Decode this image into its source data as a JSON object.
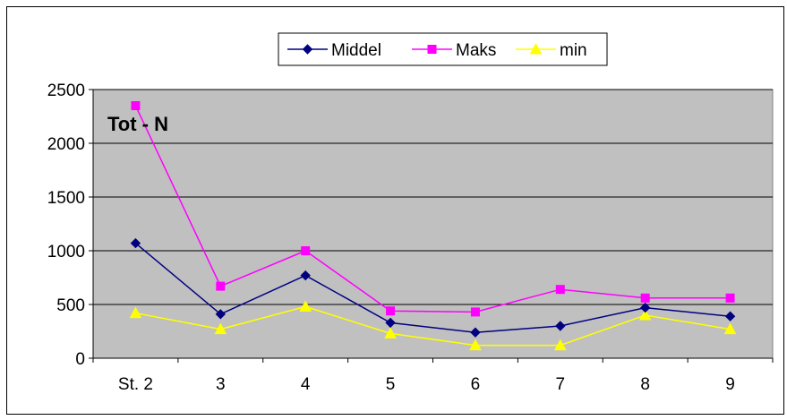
{
  "chart_data": {
    "type": "line",
    "title": "Tot - N",
    "categories": [
      "St. 2",
      "3",
      "4",
      "5",
      "6",
      "7",
      "8",
      "9"
    ],
    "ylim": [
      0,
      2500
    ],
    "yticks": [
      0,
      500,
      1000,
      1500,
      2000,
      2500
    ],
    "grid": true,
    "legend_position": "top",
    "plot_background": "#c0c0c0",
    "series": [
      {
        "name": "Middel",
        "color": "#000080",
        "marker": "diamond",
        "values": [
          1070,
          410,
          770,
          330,
          240,
          300,
          470,
          390
        ]
      },
      {
        "name": "Maks",
        "color": "#ff00ff",
        "marker": "square",
        "values": [
          2350,
          670,
          1000,
          440,
          430,
          640,
          560,
          560
        ]
      },
      {
        "name": "min",
        "color": "#ffff00",
        "marker": "triangle",
        "values": [
          420,
          270,
          480,
          230,
          120,
          120,
          400,
          270
        ]
      }
    ]
  }
}
